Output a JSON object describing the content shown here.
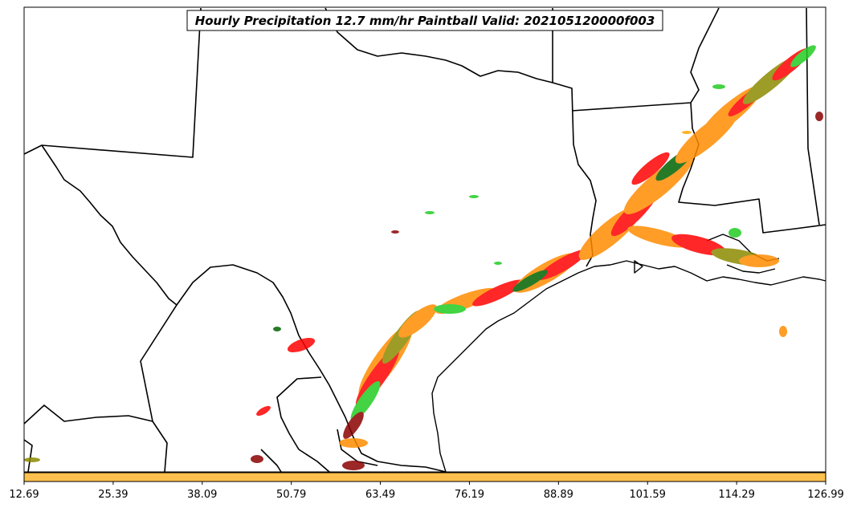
{
  "title": "Hourly Precipitation 12.7 mm/hr Paintball Valid: 202105120000f003",
  "colorbar": {
    "fill_color": "#ffc04d",
    "ticks": [
      "12.69",
      "25.39",
      "38.09",
      "50.79",
      "63.49",
      "76.19",
      "88.89",
      "101.59",
      "114.29",
      "126.99"
    ]
  },
  "colors": {
    "background": "#ffffff",
    "boundaries": "#000000",
    "paintball": [
      "#ff8c00",
      "#ff0000",
      "#22cc22",
      "#8b8b00",
      "#8b0000",
      "#006400",
      "#ffa500"
    ]
  },
  "map": {
    "region": "Texas and Gulf Coast, southern US",
    "features": [
      "state-boundaries",
      "coastline",
      "rivers",
      "precipitation-paintballs"
    ]
  }
}
